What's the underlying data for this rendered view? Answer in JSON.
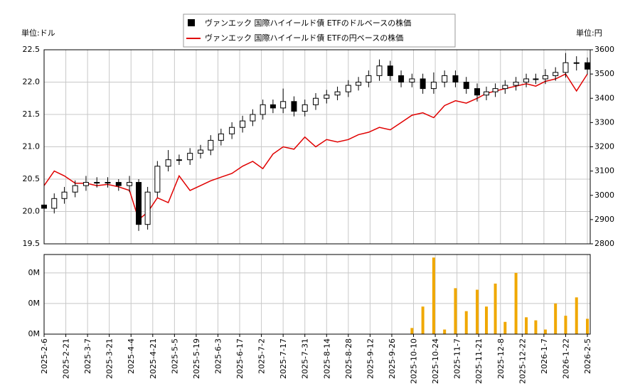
{
  "chart_data": [
    {
      "type": "candlestick",
      "y_unit_label": "単位:ドル",
      "y2_unit_label": "単位:円",
      "x": [
        "2025-2-6",
        "2025-2-13",
        "2025-2-20",
        "2025-2-27",
        "2025-3-6",
        "2025-3-13",
        "2025-3-20",
        "2025-3-27",
        "2025-4-3",
        "2025-4-10",
        "2025-4-17",
        "2025-4-24",
        "2025-5-1",
        "2025-5-8",
        "2025-5-15",
        "2025-5-22",
        "2025-5-29",
        "2025-6-5",
        "2025-6-12",
        "2025-6-19",
        "2025-6-26",
        "2025-7-3",
        "2025-7-10",
        "2025-7-17",
        "2025-7-24",
        "2025-7-31",
        "2025-8-7",
        "2025-8-14",
        "2025-8-21",
        "2025-8-28",
        "2025-9-4",
        "2025-9-11",
        "2025-9-18",
        "2025-9-25",
        "2025-10-2",
        "2025-10-9",
        "2025-10-16",
        "2025-10-23",
        "2025-10-30",
        "2025-11-6",
        "2025-11-13",
        "2025-11-20",
        "2025-11-27",
        "2025-12-4",
        "2025-12-11",
        "2025-12-18",
        "2025-12-25",
        "2026-1-1",
        "2026-1-8",
        "2026-1-15",
        "2026-1-22",
        "2026-1-29",
        "2026-2-5"
      ],
      "candles": {
        "name": "ヴァンエック 国際ハイイールド債 ETFのドルベースの株価",
        "color": "#000000",
        "open": [
          20.1,
          20.05,
          20.2,
          20.3,
          20.4,
          20.45,
          20.45,
          20.45,
          20.4,
          20.45,
          19.8,
          20.3,
          20.7,
          20.8,
          20.8,
          20.9,
          20.95,
          21.1,
          21.2,
          21.3,
          21.4,
          21.5,
          21.65,
          21.6,
          21.7,
          21.55,
          21.65,
          21.75,
          21.8,
          21.85,
          21.95,
          22.0,
          22.1,
          22.25,
          22.1,
          22.0,
          22.05,
          21.9,
          22.0,
          22.1,
          22.0,
          21.9,
          21.8,
          21.85,
          21.9,
          21.95,
          22.0,
          22.05,
          22.05,
          22.1,
          22.15,
          22.3,
          22.3
        ],
        "high": [
          20.18,
          20.28,
          20.38,
          20.48,
          20.55,
          20.53,
          20.53,
          20.5,
          20.55,
          20.5,
          20.38,
          20.78,
          20.95,
          20.88,
          20.98,
          21.03,
          21.18,
          21.28,
          21.38,
          21.48,
          21.58,
          21.73,
          21.73,
          21.9,
          21.78,
          21.73,
          21.83,
          21.88,
          21.93,
          22.03,
          22.08,
          22.18,
          22.35,
          22.33,
          22.18,
          22.13,
          22.13,
          22.15,
          22.18,
          22.18,
          22.08,
          21.98,
          21.93,
          21.98,
          22.03,
          22.08,
          22.13,
          22.13,
          22.2,
          22.23,
          22.45,
          22.4,
          22.38
        ],
        "low": [
          19.97,
          19.97,
          20.12,
          20.22,
          20.32,
          20.37,
          20.37,
          20.32,
          20.3,
          19.7,
          19.72,
          20.22,
          20.62,
          20.72,
          20.72,
          20.82,
          20.87,
          21.02,
          21.12,
          21.22,
          21.32,
          21.42,
          21.52,
          21.52,
          21.47,
          21.47,
          21.57,
          21.67,
          21.72,
          21.77,
          21.87,
          21.92,
          22.02,
          22.02,
          21.92,
          21.92,
          21.82,
          21.82,
          21.92,
          21.92,
          21.82,
          21.7,
          21.72,
          21.77,
          21.82,
          21.87,
          21.92,
          21.97,
          21.97,
          22.02,
          22.07,
          22.18,
          22.12
        ],
        "close": [
          20.05,
          20.2,
          20.3,
          20.4,
          20.45,
          20.45,
          20.45,
          20.4,
          20.45,
          19.8,
          20.3,
          20.7,
          20.8,
          20.8,
          20.9,
          20.95,
          21.1,
          21.2,
          21.3,
          21.4,
          21.5,
          21.65,
          21.6,
          21.7,
          21.55,
          21.65,
          21.75,
          21.8,
          21.85,
          21.95,
          22.0,
          22.1,
          22.25,
          22.1,
          22.0,
          22.05,
          21.9,
          22.0,
          22.1,
          22.0,
          21.9,
          21.8,
          21.85,
          21.9,
          21.95,
          22.0,
          22.05,
          22.05,
          22.1,
          22.15,
          22.3,
          22.3,
          22.2
        ]
      },
      "series": [
        {
          "name": "ヴァンエック 国際ハイイールド債 ETFの円ベースの株価",
          "color": "#e00000",
          "axis": "y2",
          "values": [
            3040,
            3100,
            3080,
            3050,
            3050,
            3040,
            3045,
            3035,
            3020,
            2900,
            2930,
            2990,
            2970,
            3080,
            3020,
            3040,
            3060,
            3075,
            3090,
            3120,
            3140,
            3110,
            3170,
            3200,
            3190,
            3240,
            3200,
            3230,
            3220,
            3230,
            3250,
            3260,
            3280,
            3270,
            3300,
            3330,
            3340,
            3320,
            3370,
            3390,
            3380,
            3400,
            3420,
            3430,
            3440,
            3450,
            3460,
            3450,
            3470,
            3480,
            3500,
            3430,
            3500
          ]
        }
      ],
      "ylim": [
        19.5,
        22.5
      ],
      "yticks": [
        19.5,
        {
          "value": 20,
          "label": "20.0"
        },
        20.5,
        {
          "value": 21,
          "label": "21.0"
        },
        21.5,
        {
          "value": 22,
          "label": "22.0"
        },
        22.5
      ],
      "y2lim": [
        2800,
        3600
      ],
      "y2ticks": [
        2800,
        2900,
        3000,
        3100,
        3200,
        3300,
        3400,
        3500,
        3600
      ],
      "grid": true,
      "legend": "top"
    },
    {
      "type": "bar",
      "x": [
        "2025-2-6",
        "2025-2-13",
        "2025-2-20",
        "2025-2-27",
        "2025-3-6",
        "2025-3-13",
        "2025-3-20",
        "2025-3-27",
        "2025-4-3",
        "2025-4-10",
        "2025-4-17",
        "2025-4-24",
        "2025-5-1",
        "2025-5-8",
        "2025-5-15",
        "2025-5-22",
        "2025-5-29",
        "2025-6-5",
        "2025-6-12",
        "2025-6-19",
        "2025-6-26",
        "2025-7-3",
        "2025-7-10",
        "2025-7-17",
        "2025-7-24",
        "2025-7-31",
        "2025-8-7",
        "2025-8-14",
        "2025-8-21",
        "2025-8-28",
        "2025-9-4",
        "2025-9-11",
        "2025-9-18",
        "2025-9-25",
        "2025-10-2",
        "2025-10-9",
        "2025-10-16",
        "2025-10-23",
        "2025-10-30",
        "2025-11-6",
        "2025-11-13",
        "2025-11-20",
        "2025-11-27",
        "2025-12-4",
        "2025-12-11",
        "2025-12-18",
        "2025-12-25",
        "2026-1-1",
        "2026-1-8",
        "2026-1-15",
        "2026-1-22",
        "2026-1-29",
        "2026-2-5"
      ],
      "values": [
        0,
        0,
        0,
        0,
        0,
        0,
        0,
        0,
        0,
        0,
        0,
        0,
        0,
        0,
        0,
        0,
        0,
        0,
        0,
        0,
        0,
        0,
        0,
        0,
        0,
        0,
        0,
        0,
        0,
        0,
        0,
        0,
        0,
        0,
        0,
        40000,
        180000,
        500000,
        30000,
        300000,
        150000,
        290000,
        180000,
        330000,
        80000,
        400000,
        110000,
        90000,
        30000,
        200000,
        120000,
        240000,
        100000
      ],
      "color": "#f0a800",
      "ylim": [
        0,
        520000
      ],
      "yticks": [
        {
          "value": 0,
          "label": "0M"
        },
        {
          "value": 200000,
          "label": "0M"
        },
        {
          "value": 400000,
          "label": "0M"
        }
      ],
      "xticks": [
        "2025-2-6",
        "2025-2-21",
        "2025-3-7",
        "2025-3-21",
        "2025-4-4",
        "2025-4-21",
        "2025-5-5",
        "2025-5-19",
        "2025-6-3",
        "2025-6-17",
        "2025-7-2",
        "2025-7-17",
        "2025-7-31",
        "2025-8-14",
        "2025-8-28",
        "2025-9-12",
        "2025-9-26",
        "2025-10-10",
        "2025-10-24",
        "2025-11-7",
        "2025-11-21",
        "2025-12-8",
        "2025-12-22",
        "2026-1-7",
        "2026-1-22",
        "2026-2-5"
      ],
      "grid": true
    }
  ]
}
